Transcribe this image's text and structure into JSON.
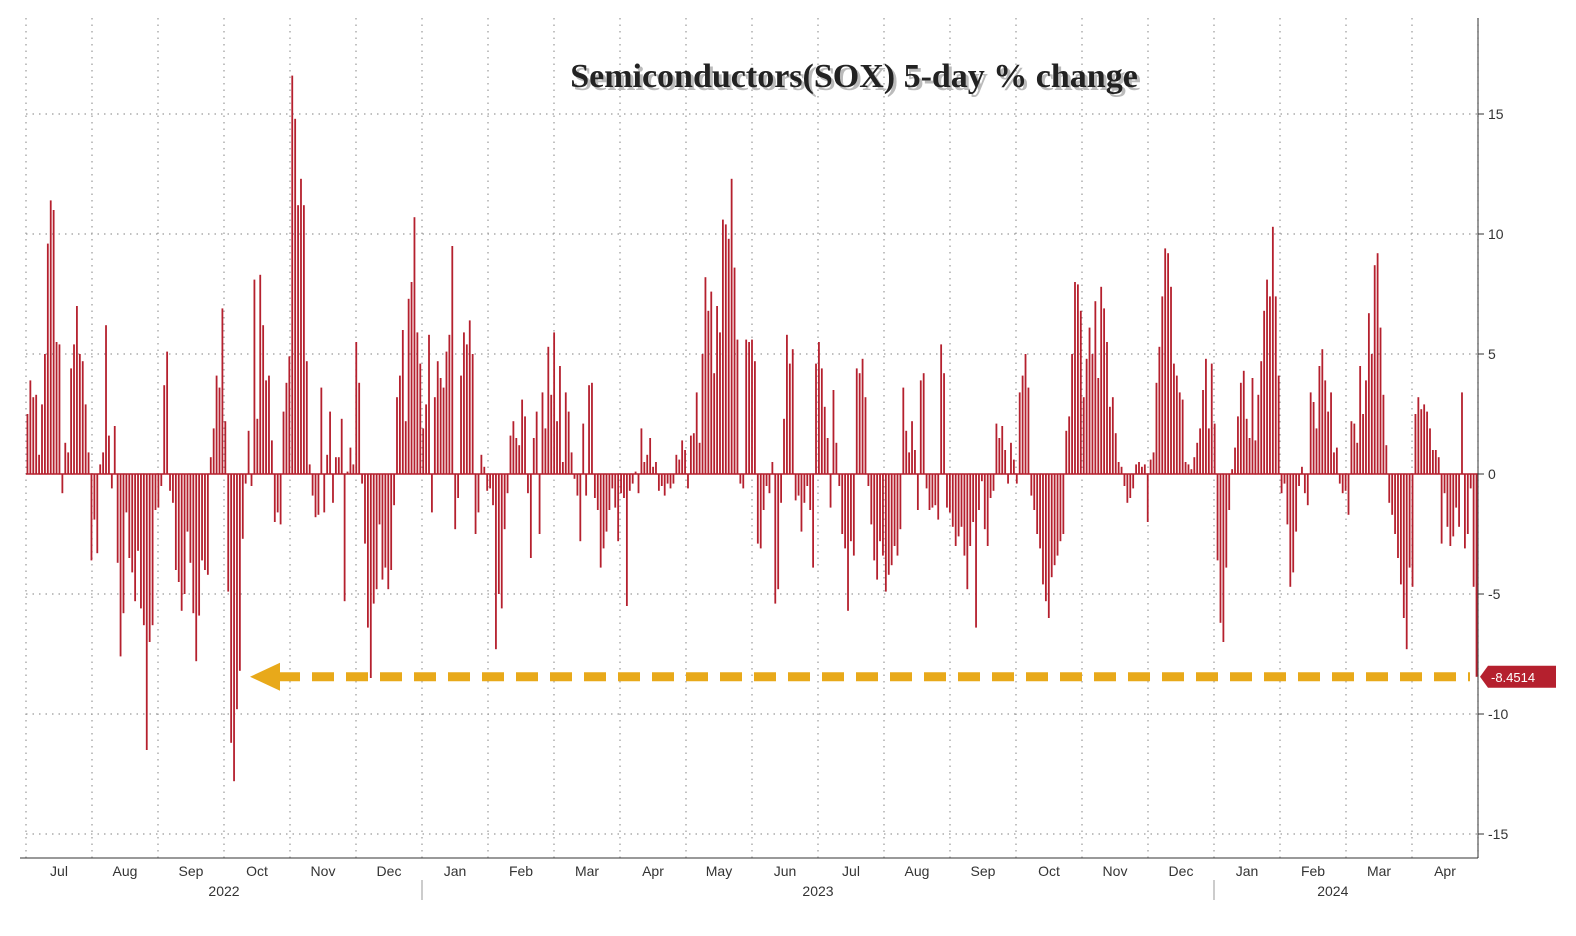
{
  "chart_data": {
    "type": "bar",
    "title": "Semiconductors(SOX) 5-day % change",
    "xlabel": "",
    "ylabel": "",
    "ylim": [
      -16,
      19
    ],
    "yticks": [
      -15,
      -10,
      -5,
      0,
      5,
      10,
      15
    ],
    "y_axis_side": "right",
    "grid": true,
    "legend": "none",
    "bar_color": "#b5202e",
    "month_labels": [
      {
        "label": "Jul",
        "pos": 0.5
      },
      {
        "label": "Aug",
        "pos": 1.5
      },
      {
        "label": "Sep",
        "pos": 2.5
      },
      {
        "label": "Oct",
        "pos": 3.5
      },
      {
        "label": "Nov",
        "pos": 4.5
      },
      {
        "label": "Dec",
        "pos": 5.5
      },
      {
        "label": "Jan",
        "pos": 6.5
      },
      {
        "label": "Feb",
        "pos": 7.5
      },
      {
        "label": "Mar",
        "pos": 8.5
      },
      {
        "label": "Apr",
        "pos": 9.5
      },
      {
        "label": "May",
        "pos": 10.5
      },
      {
        "label": "Jun",
        "pos": 11.5
      },
      {
        "label": "Jul",
        "pos": 12.5
      },
      {
        "label": "Aug",
        "pos": 13.5
      },
      {
        "label": "Sep",
        "pos": 14.5
      },
      {
        "label": "Oct",
        "pos": 15.5
      },
      {
        "label": "Nov",
        "pos": 16.5
      },
      {
        "label": "Dec",
        "pos": 17.5
      },
      {
        "label": "Jan",
        "pos": 18.5
      },
      {
        "label": "Feb",
        "pos": 19.5
      },
      {
        "label": "Mar",
        "pos": 20.5
      },
      {
        "label": "Apr",
        "pos": 21.5
      }
    ],
    "year_labels": [
      {
        "label": "2022",
        "pos": 3.0
      },
      {
        "label": "2023",
        "pos": 12.0
      },
      {
        "label": "2024",
        "pos": 19.8
      }
    ],
    "year_dividers": [
      6.0,
      18.0
    ],
    "values": [
      2.5,
      3.9,
      3.2,
      3.3,
      0.8,
      2.9,
      5.0,
      9.6,
      11.4,
      11.0,
      5.5,
      5.4,
      -0.8,
      1.3,
      0.9,
      4.4,
      5.4,
      7.0,
      5.0,
      4.7,
      2.9,
      0.9,
      -3.6,
      -1.9,
      -3.3,
      0.4,
      0.9,
      6.2,
      1.6,
      -0.6,
      2.0,
      -3.7,
      -7.6,
      -5.8,
      -1.6,
      -3.5,
      -4.1,
      -5.3,
      -3.2,
      -5.6,
      -6.3,
      -11.5,
      -7.0,
      -6.3,
      -1.5,
      -1.4,
      -0.5,
      3.7,
      5.1,
      -0.7,
      -1.2,
      -4.0,
      -4.5,
      -5.7,
      -5.0,
      -2.4,
      -3.7,
      -5.8,
      -7.8,
      -5.9,
      -3.6,
      -4.0,
      -4.2,
      0.7,
      1.9,
      4.1,
      3.6,
      6.9,
      2.2,
      -4.9,
      -11.2,
      -12.8,
      -9.8,
      -8.2,
      -2.7,
      -0.4,
      1.8,
      -0.5,
      8.1,
      2.3,
      8.3,
      6.2,
      3.9,
      4.1,
      1.4,
      -2.0,
      -1.6,
      -2.1,
      2.6,
      3.8,
      4.9,
      16.6,
      14.8,
      11.2,
      12.3,
      11.2,
      4.7,
      0.4,
      -0.9,
      -1.8,
      -1.7,
      3.6,
      -1.6,
      0.8,
      2.6,
      -1.2,
      0.7,
      0.7,
      2.3,
      -5.3,
      0.1,
      1.1,
      0.4,
      5.5,
      3.8,
      -0.4,
      -2.9,
      -6.4,
      -8.5,
      -5.4,
      -4.8,
      -2.1,
      -4.4,
      -3.9,
      -4.8,
      -4.0,
      -1.3,
      3.2,
      4.1,
      6.0,
      2.2,
      7.3,
      8.0,
      10.7,
      5.9,
      4.6,
      1.9,
      2.9,
      5.8,
      -1.6,
      3.2,
      4.7,
      4.0,
      3.6,
      5.1,
      5.8,
      9.5,
      -2.3,
      -1.0,
      4.1,
      5.9,
      5.4,
      6.4,
      5.0,
      -2.5,
      -1.6,
      0.8,
      0.3,
      -0.7,
      -0.6,
      -1.3,
      -7.3,
      -5.0,
      -5.6,
      -2.3,
      -0.8,
      1.6,
      2.2,
      1.5,
      1.2,
      3.1,
      2.4,
      -0.8,
      -3.5,
      1.5,
      2.6,
      -2.5,
      3.4,
      1.9,
      5.3,
      3.3,
      5.9,
      2.2,
      4.5,
      0.5,
      3.4,
      2.6,
      0.9,
      -0.2,
      -0.9,
      -2.8,
      2.1,
      -0.9,
      3.7,
      3.8,
      -1.0,
      -1.5,
      -3.9,
      -3.1,
      -2.4,
      -1.5,
      -0.6,
      -1.4,
      -2.8,
      -0.8,
      -1.0,
      -5.5,
      -0.7,
      -0.4,
      0.1,
      -0.8,
      1.9,
      0.5,
      0.8,
      1.5,
      0.3,
      0.5,
      -0.7,
      -0.5,
      -0.9,
      -0.4,
      -0.6,
      -0.4,
      0.8,
      0.6,
      1.4,
      1.0,
      -0.6,
      1.6,
      1.7,
      3.4,
      1.3,
      5.0,
      8.2,
      6.8,
      7.6,
      4.2,
      7.0,
      5.9,
      10.6,
      10.4,
      9.8,
      12.3,
      8.6,
      5.6,
      -0.4,
      -0.6,
      5.6,
      5.5,
      5.6,
      4.7,
      -2.9,
      -3.1,
      -1.5,
      -0.5,
      -0.8,
      0.5,
      -5.4,
      -4.8,
      -1.2,
      2.3,
      5.8,
      4.6,
      5.2,
      -1.1,
      -0.9,
      -2.4,
      -1.2,
      -0.5,
      -1.5,
      -3.9,
      4.6,
      5.5,
      4.4,
      2.8,
      1.5,
      -1.4,
      3.5,
      1.3,
      -0.5,
      -2.5,
      -3.1,
      -5.7,
      -2.8,
      -3.4,
      4.4,
      4.2,
      4.8,
      3.2,
      -0.5,
      -2.1,
      -3.6,
      -4.4,
      -2.8,
      -3.4,
      -4.9,
      -4.2,
      -3.8,
      -3.0,
      -3.4,
      -2.3,
      3.6,
      1.8,
      0.9,
      2.2,
      1.0,
      -1.5,
      3.9,
      4.2,
      -0.6,
      -1.5,
      -1.4,
      -1.3,
      -1.9,
      5.4,
      4.2,
      -1.4,
      -1.6,
      -2.2,
      -3.0,
      -2.6,
      -2.2,
      -3.4,
      -4.8,
      -3.0,
      -2.0,
      -6.4,
      -1.5,
      -0.3,
      -2.3,
      -3.0,
      -1.0,
      -0.7,
      2.1,
      1.5,
      2.0,
      1.0,
      -0.4,
      1.3,
      0.6,
      -0.4,
      3.4,
      4.1,
      5.0,
      3.6,
      -0.9,
      -1.5,
      -2.5,
      -3.1,
      -4.6,
      -5.3,
      -6.0,
      -4.3,
      -3.8,
      -3.4,
      -2.8,
      -2.5,
      1.8,
      2.4,
      5.0,
      8.0,
      7.9,
      6.8,
      3.2,
      4.8,
      6.1,
      5.0,
      7.2,
      4.0,
      7.8,
      6.9,
      5.5,
      2.8,
      3.2,
      1.7,
      0.5,
      0.3,
      -0.5,
      -1.2,
      -1.0,
      -0.6,
      0.4,
      0.5,
      0.3,
      0.4,
      -2.0,
      0.6,
      0.9,
      3.8,
      5.3,
      7.4,
      9.4,
      9.2,
      7.8,
      4.6,
      4.1,
      3.4,
      3.1,
      0.5,
      0.4,
      0.2,
      0.7,
      1.3,
      1.9,
      3.5,
      4.8,
      1.9,
      4.6,
      2.1,
      -3.6,
      -6.2,
      -7.0,
      -3.9,
      -1.5,
      0.2,
      1.1,
      2.4,
      3.8,
      4.3,
      2.3,
      1.5,
      4.0,
      1.4,
      3.3,
      4.7,
      6.8,
      8.1,
      7.4,
      10.3,
      7.4,
      4.1,
      -0.8,
      -0.4,
      -2.1,
      -4.7,
      -4.1,
      -2.4,
      -0.5,
      0.3,
      -0.8,
      -1.3,
      3.4,
      3.0,
      1.9,
      4.5,
      5.2,
      3.9,
      2.6,
      3.4,
      0.9,
      1.1,
      -0.4,
      -0.8,
      -0.7,
      -1.7,
      2.2,
      2.1,
      1.3,
      4.5,
      2.5,
      3.9,
      6.7,
      5.0,
      8.7,
      9.2,
      6.1,
      3.3,
      1.2,
      -1.2,
      -1.7,
      -2.5,
      -3.5,
      -4.6,
      -6.0,
      -7.3,
      -3.9,
      -4.7,
      2.5,
      3.2,
      2.7,
      2.9,
      2.6,
      1.9,
      1.0,
      1.0,
      0.7,
      -2.9,
      -0.8,
      -2.2,
      -3.0,
      -2.6,
      -1.4,
      -2.2,
      3.4,
      -3.1,
      -2.5,
      -0.6,
      -4.7,
      -8.45
    ],
    "last_value": "-8.4514",
    "last_value_color": "#b5202e",
    "reference_line": {
      "value": -8.45,
      "color": "#e8a91a",
      "style": "dashed-arrow"
    }
  }
}
